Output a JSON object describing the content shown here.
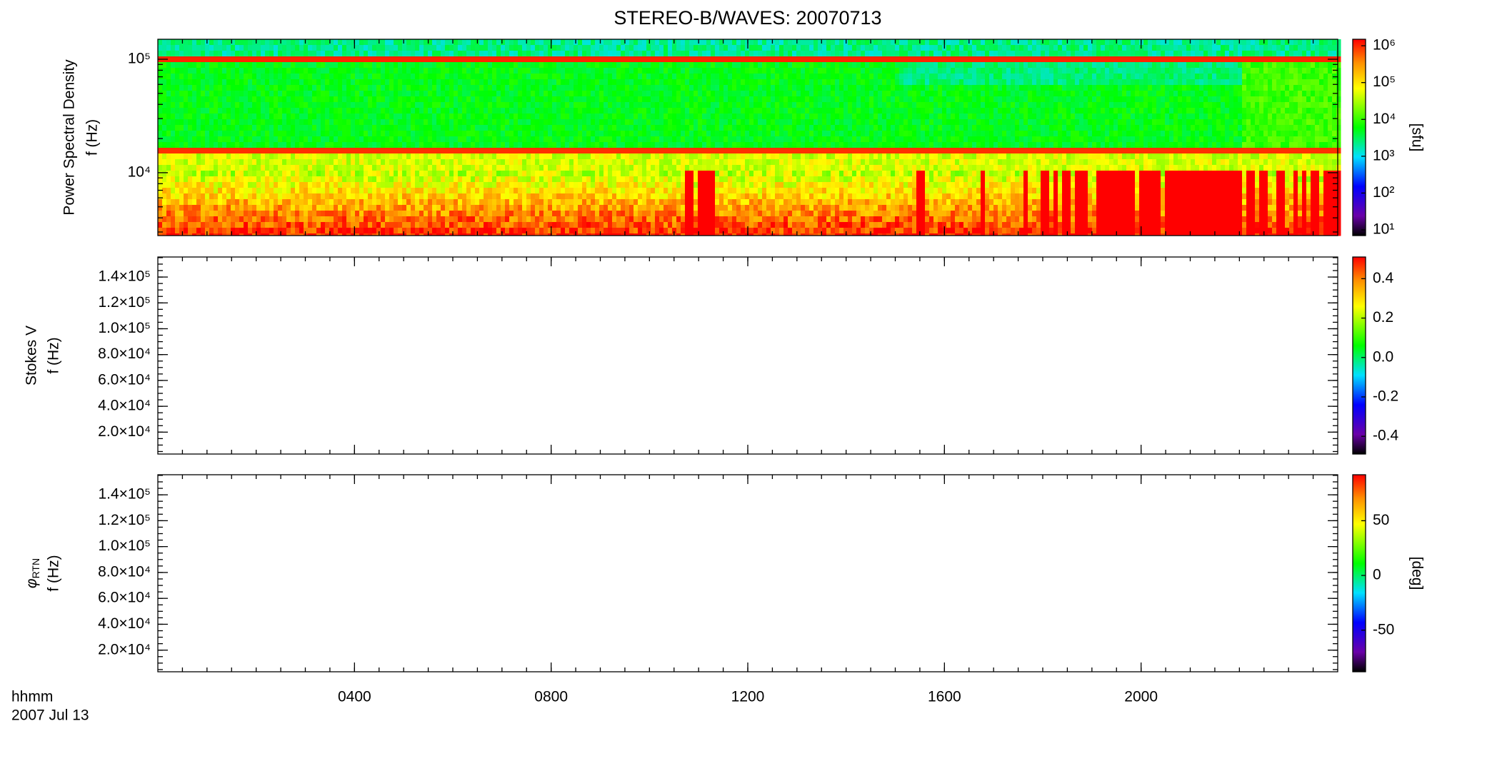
{
  "chart_data": [
    {
      "type": "heatmap",
      "title": "STEREO-B/WAVES: 20070713",
      "ylabel": [
        "Power Spectral Density",
        "f (Hz)"
      ],
      "ylog": true,
      "ylim": [
        2790,
        150000
      ],
      "yticks": [
        {
          "value": 100000,
          "label": "10⁵"
        },
        {
          "value": 10000,
          "label": "10⁴"
        }
      ],
      "xlim": [
        0,
        24
      ],
      "xticks": [
        4,
        8,
        12,
        16,
        20
      ],
      "colorbar": {
        "log": true,
        "clim": [
          7,
          1500000
        ],
        "ticks": [
          {
            "value": 10,
            "label": "10¹"
          },
          {
            "value": 100,
            "label": "10²"
          },
          {
            "value": 1000,
            "label": "10³"
          },
          {
            "value": 10000,
            "label": "10⁴"
          },
          {
            "value": 100000,
            "label": "10⁵"
          },
          {
            "value": 1000000,
            "label": "10⁶"
          }
        ],
        "label": "[sfu]"
      }
    },
    {
      "type": "heatmap",
      "ylabel": [
        "Stokes V",
        "f (Hz)"
      ],
      "ylog": false,
      "ylim": [
        3060,
        155500
      ],
      "yticks": [
        {
          "value": 20000,
          "label": "2.0×10⁴"
        },
        {
          "value": 40000,
          "label": "4.0×10⁴"
        },
        {
          "value": 60000,
          "label": "6.0×10⁴"
        },
        {
          "value": 80000,
          "label": "8.0×10⁴"
        },
        {
          "value": 100000,
          "label": "1.0×10⁵"
        },
        {
          "value": 120000,
          "label": "1.2×10⁵"
        },
        {
          "value": 140000,
          "label": "1.4×10⁵"
        }
      ],
      "xlim": [
        0,
        24
      ],
      "xticks": [
        4,
        8,
        12,
        16,
        20
      ],
      "colorbar": {
        "log": false,
        "clim": [
          -0.49,
          0.51
        ],
        "ticks": [
          -0.4,
          -0.2,
          {
            "value": 0,
            "label": "0.0"
          },
          0.2,
          0.4
        ]
      }
    },
    {
      "type": "heatmap",
      "ylabel_symbol": "φ",
      "ylabel_subscript": "RTN",
      "ylabel_unit": "f (Hz)",
      "ylog": false,
      "ylim": [
        3300,
        155500
      ],
      "yticks": [
        {
          "value": 20000,
          "label": "2.0×10⁴"
        },
        {
          "value": 40000,
          "label": "4.0×10⁴"
        },
        {
          "value": 60000,
          "label": "6.0×10⁴"
        },
        {
          "value": 80000,
          "label": "8.0×10⁴"
        },
        {
          "value": 100000,
          "label": "1.0×10⁵"
        },
        {
          "value": 120000,
          "label": "1.2×10⁵"
        },
        {
          "value": 140000,
          "label": "1.4×10⁵"
        }
      ],
      "xlim": [
        0,
        24
      ],
      "xticks": [
        {
          "value": 4,
          "label": "0400"
        },
        {
          "value": 8,
          "label": "0800"
        },
        {
          "value": 12,
          "label": "1200"
        },
        {
          "value": 16,
          "label": "1600"
        },
        {
          "value": 20,
          "label": "2000"
        }
      ],
      "xlabel": [
        "hhmm",
        "2007 Jul 13"
      ],
      "colorbar": {
        "log": false,
        "clim": [
          -88,
          92
        ],
        "ticks": [
          -50,
          0,
          50
        ],
        "label": "[deg]"
      }
    }
  ]
}
